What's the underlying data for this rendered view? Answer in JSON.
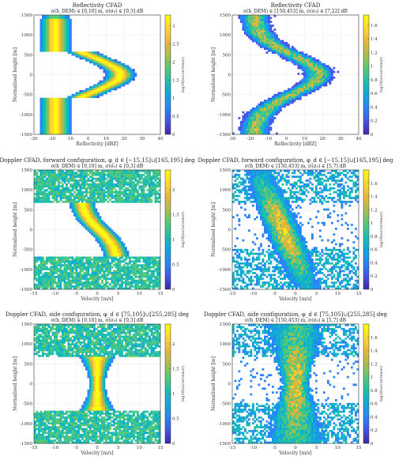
{
  "colormap": [
    "#3e26a8",
    "#4455e6",
    "#2a84f9",
    "#10a8d8",
    "#1cbfb0",
    "#56c877",
    "#a6be54",
    "#e6b63a",
    "#fdd432",
    "#f9fb0e"
  ],
  "chart_data": [
    {
      "type": "heatmap",
      "id": "p1",
      "title_line1": "Reflectivity CFAD",
      "title_line2": "σ(h_DEM) ∈ [0,10] m, σ(σ₀) ∈ [0,3] dB",
      "xlabel": "Reflectivity [dBZ]",
      "ylabel": "Normalised height [m]",
      "xlim": [
        -30,
        40
      ],
      "ylim": [
        -1500,
        1500
      ],
      "xticks": [
        -30,
        -20,
        -10,
        0,
        10,
        20,
        30,
        40
      ],
      "yticks": [
        -1500,
        -1000,
        -500,
        0,
        500,
        1000,
        1500
      ],
      "colorbar": {
        "label": "log10(occurrence)",
        "min": 0,
        "max": 3.3,
        "ticks": [
          0,
          0.5,
          1,
          1.5,
          2,
          2.5,
          3
        ]
      }
    },
    {
      "type": "heatmap",
      "id": "p2",
      "title_line1": "Reflectivity CFAD",
      "title_line2": "σ(h_DEM) ∈ [150,453] m, σ(σ₀) ∈ [7,22] dB",
      "xlabel": "Reflectivity [dBZ]",
      "ylabel": "Normalised height [m]",
      "xlim": [
        -30,
        40
      ],
      "ylim": [
        -1500,
        1500
      ],
      "xticks": [
        -30,
        -20,
        -10,
        0,
        10,
        20,
        30,
        40
      ],
      "yticks": [
        -1500,
        -1000,
        -500,
        0,
        500,
        1000,
        1500
      ],
      "colorbar": {
        "label": "log10(occurrence)",
        "min": 0,
        "max": 1.75,
        "ticks": [
          0,
          0.2,
          0.4,
          0.6,
          0.8,
          1,
          1.2,
          1.4,
          1.6
        ]
      }
    },
    {
      "type": "heatmap",
      "id": "p3",
      "title_line1": "Doppler CFAD, forward configuration, φ_d ∈ [−15,15]∪[165,195] deg",
      "title_line2": "σ(h_DEM) ∈ [0,10] m, σ(σ₀) ∈ [0,3] dB",
      "xlabel": "Velocity [m/s]",
      "ylabel": "Normalised height [m]",
      "xlim": [
        -15,
        15
      ],
      "ylim": [
        -1500,
        1500
      ],
      "xticks": [
        -15,
        -10,
        -5,
        0,
        5,
        10,
        15
      ],
      "yticks": [
        -1500,
        -1000,
        -500,
        0,
        500,
        1000,
        1500
      ],
      "colorbar": {
        "label": "log10(occurrence)",
        "min": 0,
        "max": 2.4,
        "ticks": [
          0,
          0.5,
          1,
          1.5,
          2
        ]
      }
    },
    {
      "type": "heatmap",
      "id": "p4",
      "title_line1": "Doppler CFAD, forward configuration, φ_d ∈ [−15,15]∪[165,195] deg",
      "title_line2": "σ(h_DEM) ∈ [150,453] m, σ(σ₀) ∈ [5,7] dB",
      "xlabel": "Velocity [m/s]",
      "ylabel": "Normalised height [m]",
      "xlim": [
        -15,
        15
      ],
      "ylim": [
        -1500,
        1500
      ],
      "xticks": [
        -15,
        -10,
        -5,
        0,
        5,
        10,
        15
      ],
      "yticks": [
        -1500,
        -1000,
        -500,
        0,
        500,
        1000,
        1500
      ],
      "colorbar": {
        "label": "log10(occurrence)",
        "min": 0,
        "max": 1.8,
        "ticks": [
          0,
          0.2,
          0.4,
          0.6,
          0.8,
          1,
          1.2,
          1.4,
          1.6
        ]
      }
    },
    {
      "type": "heatmap",
      "id": "p5",
      "title_line1": "Doppler CFAD, side configuration, φ_d ∈ [75,105]∪[255,285] deg",
      "title_line2": "σ(h_DEM) ∈ [0,10] m, σ(σ₀) ∈ [0,3] dB",
      "xlabel": "Velocity [m/s]",
      "ylabel": "Normalised height [m]",
      "xlim": [
        -15,
        15
      ],
      "ylim": [
        -1500,
        1500
      ],
      "xticks": [
        -15,
        -10,
        -5,
        0,
        5,
        10,
        15
      ],
      "yticks": [
        -1500,
        -1000,
        -500,
        0,
        500,
        1000,
        1500
      ],
      "colorbar": {
        "label": "log10(occurrence)",
        "min": 0,
        "max": 2.4,
        "ticks": [
          0,
          0.5,
          1,
          1.5,
          2
        ]
      }
    },
    {
      "type": "heatmap",
      "id": "p6",
      "title_line1": "Doppler CFAD, side configuration, φ_d ∈ [75,105]∪[255,285] deg",
      "title_line2": "σ(h_DEM) ∈ [150,453] m, σ(σ₀) ∈ [5,7] dB",
      "xlabel": "Velocity [m/s]",
      "ylabel": "Normalised height [m]",
      "xlim": [
        -15,
        15
      ],
      "ylim": [
        -1500,
        1500
      ],
      "xticks": [
        -15,
        -10,
        -5,
        0,
        5,
        10,
        15
      ],
      "yticks": [
        -1500,
        -1000,
        -500,
        0,
        500,
        1000,
        1500
      ],
      "colorbar": {
        "label": "log10(occurrence)",
        "min": 0,
        "max": 1.8,
        "ticks": [
          0,
          0.2,
          0.4,
          0.6,
          0.8,
          1,
          1.2,
          1.4,
          1.6
        ]
      }
    }
  ]
}
